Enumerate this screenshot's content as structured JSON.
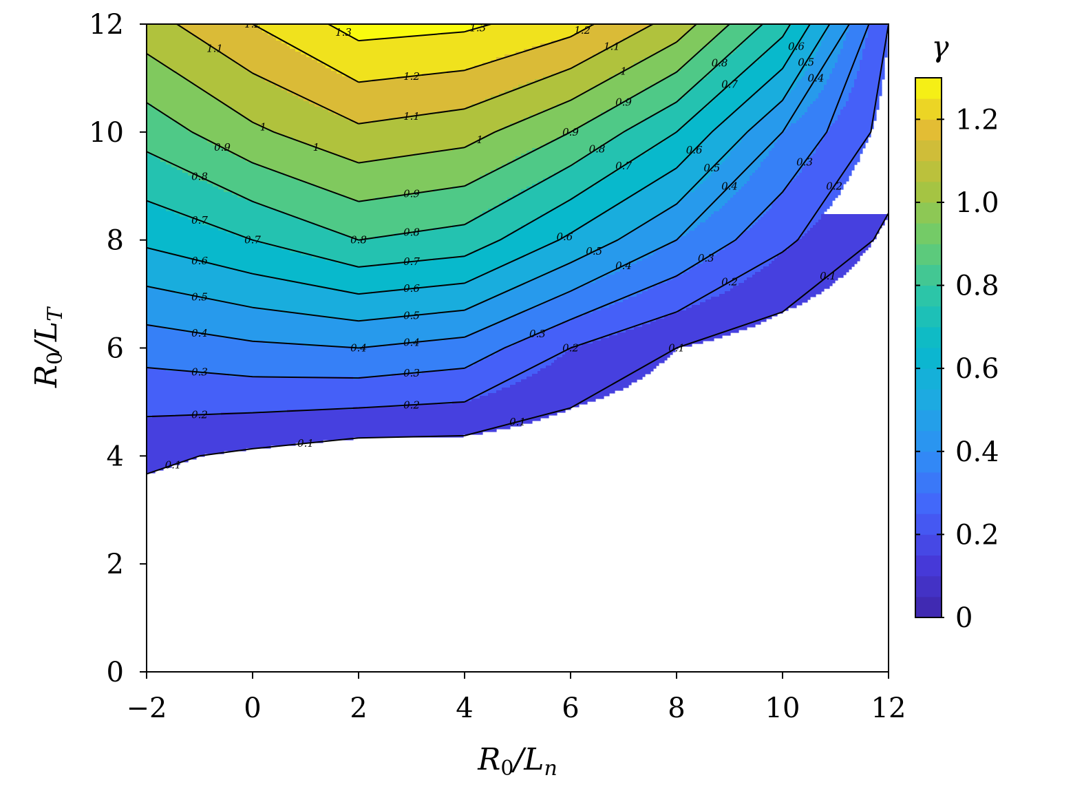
{
  "chart_data": {
    "type": "filled-contour",
    "xlabel": "R0/Ln",
    "ylabel": "R0/LT",
    "colorbar_label": "γ",
    "xlim": [
      -2,
      12
    ],
    "ylim": [
      0,
      12
    ],
    "x_ticks": [
      "−2",
      "0",
      "2",
      "4",
      "6",
      "8",
      "10",
      "12"
    ],
    "y_ticks": [
      "0",
      "2",
      "4",
      "6",
      "8",
      "10",
      "12"
    ],
    "colorbar_range": [
      0,
      1.3
    ],
    "colorbar_ticks": [
      "0",
      "0.2",
      "0.4",
      "0.6",
      "0.8",
      "1.0",
      "1.2"
    ],
    "colormap": "parula",
    "grid": false,
    "x": [
      -2,
      0,
      2,
      4,
      6,
      8,
      10,
      12
    ],
    "y": [
      0,
      2,
      4,
      6,
      8,
      10,
      12
    ],
    "z": [
      [
        0,
        0,
        0,
        0,
        0,
        0,
        0,
        0
      ],
      [
        0,
        0,
        0,
        0,
        0,
        0,
        0,
        0
      ],
      [
        0.12,
        0.08,
        0.04,
        0.04,
        0.02,
        0.01,
        0,
        0
      ],
      [
        0.34,
        0.38,
        0.4,
        0.36,
        0.2,
        0.1,
        0.04,
        0
      ],
      [
        0.62,
        0.7,
        0.8,
        0.76,
        0.58,
        0.4,
        0.22,
        0.08
      ],
      [
        0.84,
        0.98,
        1.08,
        1.04,
        0.9,
        0.7,
        0.4,
        0.16
      ],
      [
        1.06,
        1.2,
        1.34,
        1.32,
        1.24,
        1.06,
        0.74,
        0.2
      ]
    ],
    "contour_levels": [
      0.1,
      0.2,
      0.3,
      0.4,
      0.5,
      0.6,
      0.7,
      0.8,
      0.9,
      1.0,
      1.1,
      1.2,
      1.3
    ]
  }
}
